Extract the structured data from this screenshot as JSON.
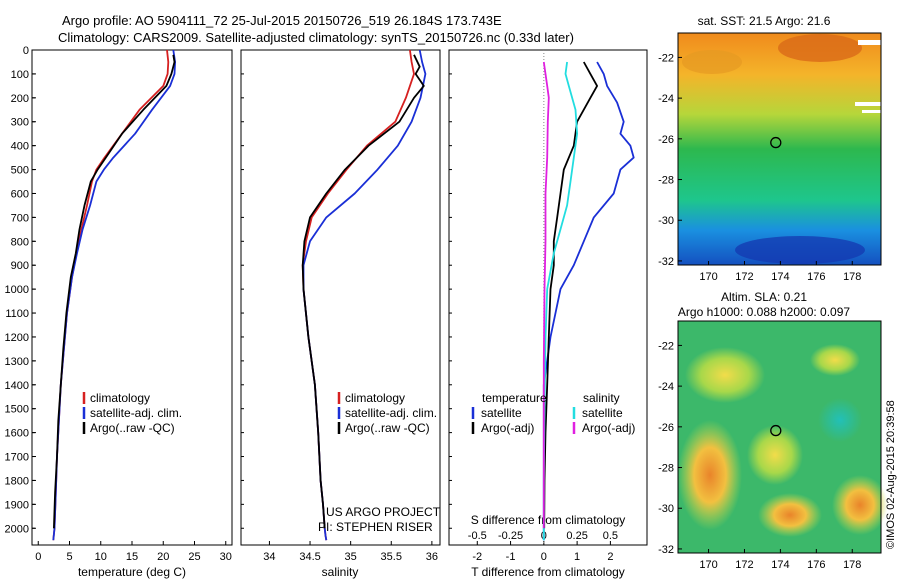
{
  "header": {
    "line1": "Argo profile: AO 5904111_72 25-Jul-2015 20150726_519 26.184S 173.743E",
    "line2": "Climatology: CARS2009. Satellite-adjusted climatology: synTS_20150726.nc (0.33d later)"
  },
  "side_stamp": "©IMOS 02-Aug-2015 20:39:58",
  "colors": {
    "climatology": "#d62020",
    "satellite": "#1a2fd6",
    "argo": "#000000",
    "sal_satellite": "#22dde0",
    "sal_argo": "#e020e0"
  },
  "chart_data": [
    {
      "type": "line",
      "xlabel": "temperature (deg C)",
      "ylabel": "",
      "xlim": [
        -1,
        31
      ],
      "ylim": [
        2070,
        0
      ],
      "xticks": [
        "0",
        "5",
        "10",
        "15",
        "20",
        "25",
        "30"
      ],
      "yticks": [
        "0",
        "100",
        "200",
        "300",
        "400",
        "500",
        "600",
        "700",
        "800",
        "900",
        "1000",
        "1100",
        "1200",
        "1300",
        "1400",
        "1500",
        "1600",
        "1700",
        "1800",
        "1900",
        "2000"
      ],
      "legend": {
        "position": "center-right",
        "entries": [
          "climatology",
          "satellite-adj. clim.",
          "Argo(..raw -QC)"
        ]
      },
      "series": [
        {
          "name": "climatology",
          "color": "#d62020",
          "x": [
            20.6,
            20.8,
            20.7,
            20.0,
            16.2,
            13.4,
            10.6,
            9.3,
            8.6,
            7.8,
            6.9,
            6.1,
            5.4,
            4.6,
            4.1,
            3.6,
            3.3,
            3.0,
            2.8,
            2.6,
            2.4
          ],
          "y": [
            0,
            50,
            100,
            150,
            250,
            350,
            450,
            500,
            550,
            650,
            750,
            850,
            950,
            1100,
            1250,
            1400,
            1550,
            1700,
            1850,
            2000,
            2050
          ]
        },
        {
          "name": "satellite-adj. clim.",
          "color": "#1a2fd6",
          "x": [
            21.6,
            21.9,
            21.8,
            21.1,
            18.2,
            15.5,
            12.0,
            10.5,
            9.3,
            8.3,
            7.1,
            6.2,
            5.4,
            4.6,
            4.1,
            3.6,
            3.3,
            3.0,
            2.8,
            2.6,
            2.4
          ],
          "y": [
            0,
            50,
            100,
            150,
            250,
            350,
            450,
            500,
            550,
            650,
            750,
            850,
            950,
            1100,
            1250,
            1400,
            1550,
            1700,
            1850,
            2000,
            2050
          ]
        },
        {
          "name": "Argo(..raw -QC)",
          "color": "#000000",
          "x": [
            21.6,
            21.8,
            21.3,
            20.5,
            16.8,
            13.4,
            10.8,
            9.5,
            8.4,
            7.4,
            6.6,
            6.0,
            5.2,
            4.5,
            4.0,
            3.6,
            3.2,
            3.0,
            2.7,
            2.5
          ],
          "y": [
            20,
            50,
            100,
            150,
            250,
            350,
            450,
            500,
            550,
            650,
            750,
            850,
            950,
            1100,
            1250,
            1400,
            1550,
            1700,
            1850,
            2000
          ]
        }
      ]
    },
    {
      "type": "line",
      "xlabel": "salinity",
      "xlim": [
        33.65,
        36.1
      ],
      "ylim": [
        2070,
        0
      ],
      "xticks": [
        "34",
        "34.5",
        "35",
        "35.5",
        "36"
      ],
      "legend": {
        "position": "center-right",
        "entries": [
          "climatology",
          "satellite-adj. clim.",
          "Argo(..raw -QC)"
        ]
      },
      "annotation": [
        "US ARGO PROJECT",
        "PI: STEPHEN RISER"
      ],
      "series": [
        {
          "name": "climatology",
          "color": "#d62020",
          "x": [
            35.73,
            35.75,
            35.78,
            35.68,
            35.55,
            35.2,
            34.95,
            34.72,
            34.52,
            34.45,
            34.41,
            34.42,
            34.48,
            34.56,
            34.6,
            34.63,
            34.66,
            34.68,
            34.69,
            34.7
          ],
          "y": [
            0,
            50,
            100,
            200,
            300,
            400,
            500,
            600,
            700,
            800,
            900,
            1000,
            1200,
            1400,
            1600,
            1800,
            1900,
            2000,
            2030,
            2050
          ]
        },
        {
          "name": "satellite-adj. clim.",
          "color": "#1a2fd6",
          "x": [
            35.85,
            35.88,
            35.92,
            35.86,
            35.75,
            35.58,
            35.33,
            35.05,
            34.7,
            34.5,
            34.42,
            34.42,
            34.48,
            34.56,
            34.6,
            34.63,
            34.66,
            34.68,
            34.69,
            34.7
          ],
          "y": [
            0,
            50,
            100,
            200,
            300,
            400,
            500,
            600,
            700,
            800,
            900,
            1000,
            1200,
            1400,
            1600,
            1800,
            1900,
            2000,
            2030,
            2050
          ]
        },
        {
          "name": "Argo(..raw -QC)",
          "color": "#000000",
          "x": [
            35.78,
            35.85,
            35.8,
            35.9,
            35.78,
            35.6,
            35.22,
            34.93,
            34.7,
            34.5,
            34.43,
            34.41,
            34.42,
            34.48,
            34.56,
            34.6,
            34.63,
            34.66,
            34.68
          ],
          "y": [
            20,
            70,
            100,
            150,
            200,
            300,
            400,
            500,
            600,
            700,
            800,
            900,
            1000,
            1200,
            1400,
            1600,
            1800,
            1900,
            2000
          ]
        }
      ]
    },
    {
      "type": "line",
      "xlabel": "T difference from climatology",
      "xlabel_top": "S difference from climatology",
      "xlim": [
        -2.85,
        3.1
      ],
      "ylim": [
        2070,
        0
      ],
      "xticks": [
        "-2",
        "-1",
        "0",
        "1",
        "2"
      ],
      "s_xticks": [
        "-0.5",
        "-0.25",
        "0",
        "0.25",
        "0.5"
      ],
      "legend_left": {
        "title": "temperature",
        "entries": [
          "satellite",
          "Argo(-adj)"
        ]
      },
      "legend_right": {
        "title": "salinity",
        "entries": [
          "satellite",
          "Argo(-adj)"
        ]
      },
      "series": [
        {
          "name": "satellite",
          "color": "#1a2fd6",
          "x": [
            1.6,
            1.8,
            1.9,
            2.2,
            2.4,
            2.3,
            2.6,
            2.7,
            2.3,
            2.1,
            1.5,
            1.2,
            0.9,
            0.5,
            0.2,
            0,
            0,
            0,
            0,
            0
          ],
          "y": [
            50,
            100,
            150,
            220,
            300,
            350,
            400,
            450,
            500,
            600,
            700,
            800,
            900,
            1000,
            1200,
            1400,
            1600,
            1800,
            2000,
            2050
          ]
        },
        {
          "name": "Argo(-adj)",
          "color": "#000000",
          "x": [
            1.2,
            1.4,
            1.6,
            1.4,
            1.0,
            0.9,
            0.6,
            0.5,
            0.4,
            0.3,
            0.3,
            0.2,
            0.15,
            0.1,
            0.05,
            0.02,
            0.01
          ],
          "y": [
            50,
            100,
            150,
            200,
            300,
            400,
            500,
            600,
            700,
            800,
            900,
            1000,
            1200,
            1400,
            1600,
            1800,
            2000
          ]
        },
        {
          "name": "salinity satellite",
          "color": "#22dde0",
          "x": [
            0.7,
            0.65,
            0.75,
            0.95,
            1.0,
            0.9,
            0.8,
            0.7,
            0.5,
            0.3,
            0.1,
            0.05,
            0.02,
            0.0,
            0.0
          ],
          "y": [
            50,
            100,
            150,
            250,
            350,
            450,
            550,
            650,
            750,
            850,
            1000,
            1200,
            1500,
            1800,
            2050
          ]
        },
        {
          "name": "salinity Argo(-adj)",
          "color": "#e020e0",
          "x": [
            0.0,
            0.05,
            0.1,
            0.15,
            0.12,
            0.1,
            0.05,
            0.05,
            0.02,
            0.0,
            0.0,
            0.0
          ],
          "y": [
            50,
            100,
            150,
            200,
            300,
            450,
            600,
            800,
            1000,
            1300,
            1600,
            2000
          ]
        }
      ]
    },
    {
      "type": "heatmap",
      "title": "sat. SST: 21.5 Argo: 21.6",
      "xticks": [
        "170",
        "172",
        "174",
        "176",
        "178"
      ],
      "yticks": [
        "-22",
        "-24",
        "-26",
        "-28",
        "-30",
        "-32"
      ],
      "xlim": [
        168.3,
        179.6
      ],
      "ylim": [
        -32.2,
        -20.8
      ],
      "marker": {
        "lon": 173.743,
        "lat": -26.184
      }
    },
    {
      "type": "heatmap",
      "title_lines": [
        "Altim. SLA: 0.21",
        "Argo h1000: 0.088 h2000: 0.097"
      ],
      "xticks": [
        "170",
        "172",
        "174",
        "176",
        "178"
      ],
      "yticks": [
        "-22",
        "-24",
        "-26",
        "-28",
        "-30",
        "-32"
      ],
      "xlim": [
        168.3,
        179.6
      ],
      "ylim": [
        -32.2,
        -20.8
      ],
      "marker": {
        "lon": 173.743,
        "lat": -26.184
      }
    }
  ]
}
